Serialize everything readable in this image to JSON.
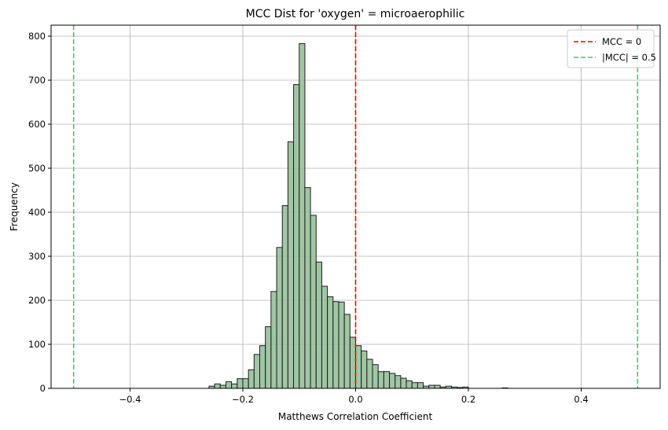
{
  "chart_data": {
    "type": "bar",
    "title": "MCC Dist for 'oxygen' = microaerophilic",
    "xlabel": "Matthews Correlation Coefficient",
    "ylabel": "Frequency",
    "xlim": [
      -0.54,
      0.54
    ],
    "ylim": [
      0,
      825
    ],
    "xticks": [
      -0.4,
      -0.2,
      0.0,
      0.2,
      0.4
    ],
    "xtick_labels": [
      "−0.4",
      "−0.2",
      "0.0",
      "0.2",
      "0.4"
    ],
    "yticks": [
      0,
      100,
      200,
      300,
      400,
      500,
      600,
      700,
      800
    ],
    "ytick_labels": [
      "0",
      "100",
      "200",
      "300",
      "400",
      "500",
      "600",
      "700",
      "800"
    ],
    "grid": true,
    "bin_start": -0.26,
    "bin_width": 0.01,
    "values": [
      5,
      10,
      7,
      15,
      10,
      22,
      22,
      42,
      77,
      97,
      140,
      220,
      320,
      415,
      560,
      690,
      783,
      456,
      393,
      287,
      232,
      208,
      197,
      196,
      168,
      116,
      97,
      85,
      66,
      54,
      38,
      38,
      34,
      29,
      23,
      17,
      13,
      13,
      5,
      7,
      7,
      3,
      5,
      3,
      2,
      3,
      0,
      0,
      0,
      0,
      0,
      0,
      1
    ],
    "bar_fill": "#8fbc94",
    "bar_fill_opacity": 0.85,
    "bar_edge": "#1f1f1f",
    "legend_position": "top-right",
    "reference_lines": [
      {
        "label": "MCC = 0",
        "x": [
          0.0
        ],
        "color": "#ff0000",
        "style": "dashed"
      },
      {
        "label": "|MCC| = 0.5",
        "x": [
          -0.5,
          0.5
        ],
        "color": "#5fb57a",
        "style": "dashed"
      }
    ]
  }
}
